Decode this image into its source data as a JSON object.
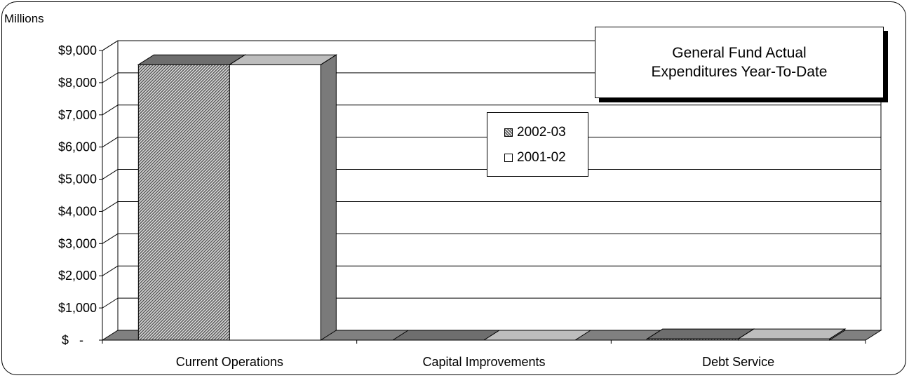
{
  "chart_data": {
    "type": "bar",
    "title_lines": [
      "General Fund Actual",
      "Expenditures Year-To-Date"
    ],
    "unit_label": "Millions",
    "categories": [
      "Current Operations",
      "Capital Improvements",
      "Debt Service"
    ],
    "series": [
      {
        "name": "2002-03",
        "values": [
          8560,
          0,
          40
        ],
        "fill": "hatched-gray"
      },
      {
        "name": "2001-02",
        "values": [
          8560,
          0,
          40
        ],
        "fill": "white"
      }
    ],
    "ylim": [
      0,
      9000
    ],
    "yticks": [
      0,
      1000,
      2000,
      3000,
      4000,
      5000,
      6000,
      7000,
      8000,
      9000
    ],
    "ytick_labels": [
      "$-",
      "$1,000",
      "$2,000",
      "$3,000",
      "$4,000",
      "$5,000",
      "$6,000",
      "$7,000",
      "$8,000",
      "$9,000"
    ],
    "grid": true,
    "legend_position": "center"
  },
  "colors": {
    "floor": "#808080",
    "side": "#7a7a7a",
    "top_hatched": "#6e6e6e",
    "top_white": "#bdbdbd",
    "grid": "#000000"
  }
}
